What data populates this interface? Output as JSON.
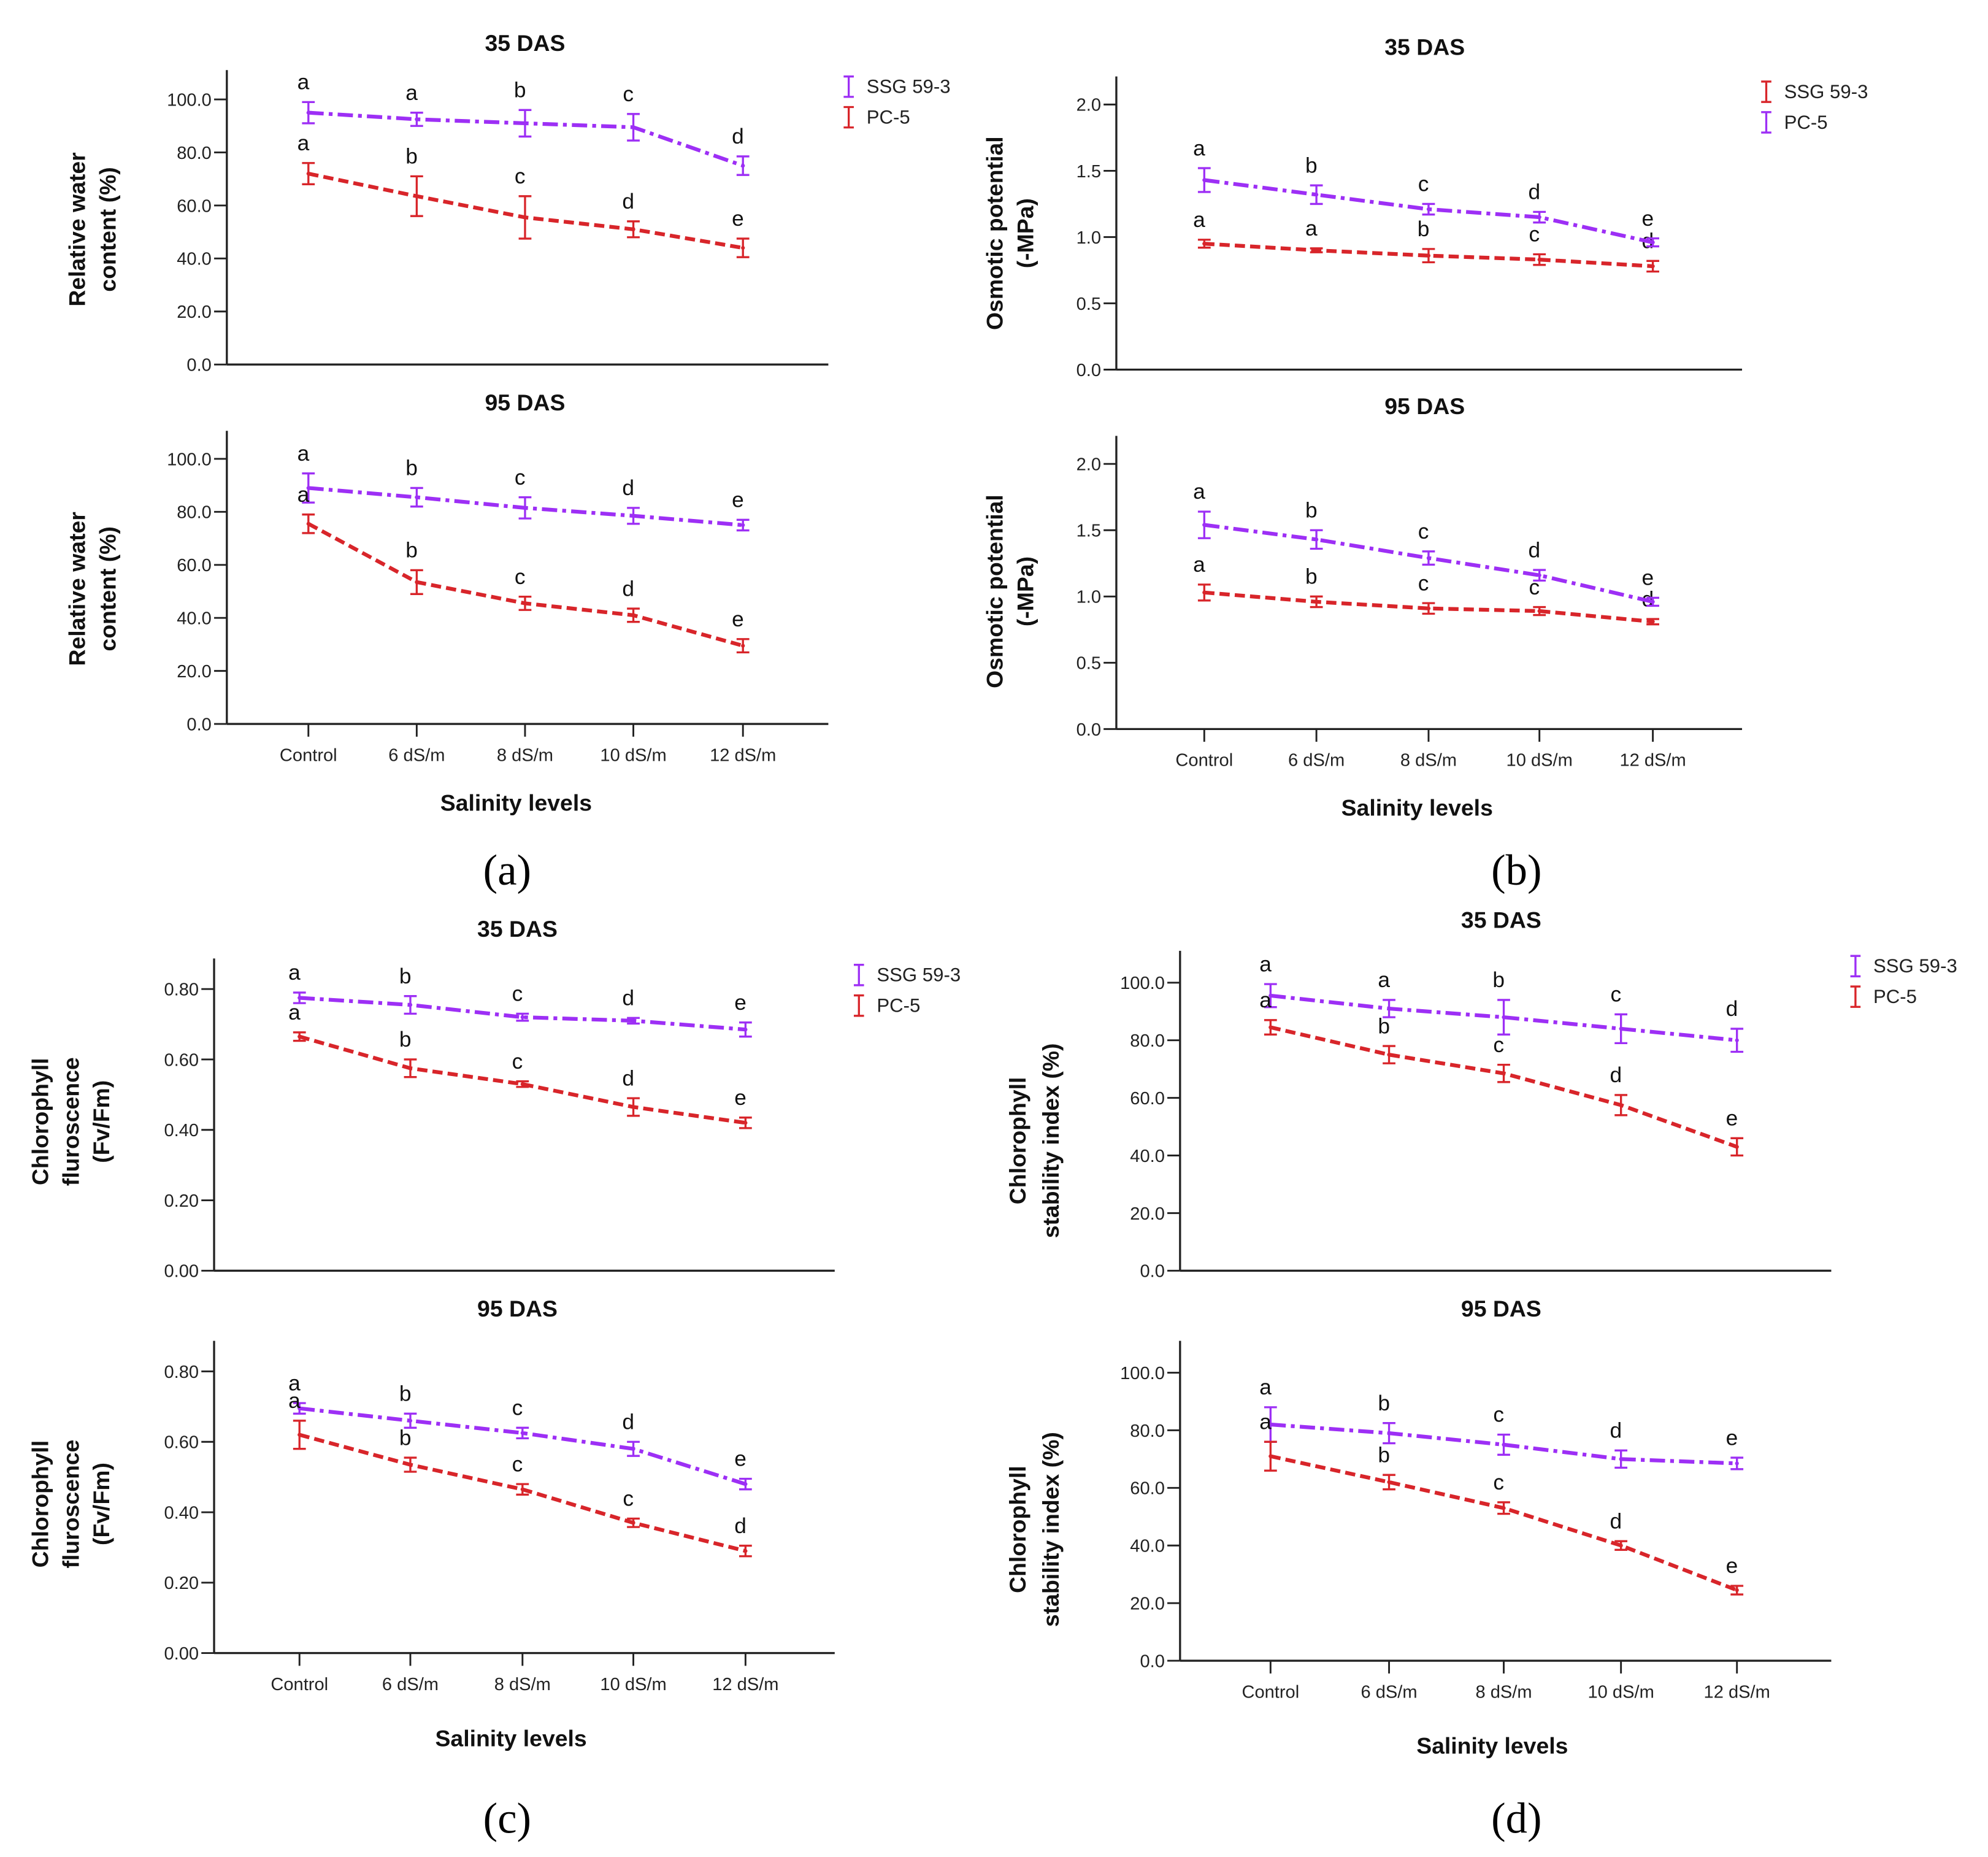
{
  "panels": [
    {
      "label": "(a)"
    },
    {
      "label": "(b)"
    },
    {
      "label": "(c)"
    },
    {
      "label": "(d)"
    }
  ],
  "colors": {
    "purple": "#9d2ff5",
    "red": "#d8252a"
  },
  "chart_data": [
    {
      "type": "line",
      "panel": "a",
      "title": "35 DAS",
      "ylabel": [
        "Relative water",
        "content (%)"
      ],
      "xlabel": "",
      "categories": [
        "Control",
        "6 dS/m",
        "8 dS/m",
        "10 dS/m",
        "12 dS/m"
      ],
      "show_categories": false,
      "ylim": [
        0,
        100
      ],
      "yticks": [
        "0.0",
        "20.0",
        "40.0",
        "60.0",
        "80.0",
        "100.0"
      ],
      "legend": "top-right",
      "series": [
        {
          "name": "SSG 59-3",
          "color": "purple",
          "style": "dashdot",
          "values": [
            95,
            92.5,
            91,
            89.5,
            75
          ],
          "errors": [
            4,
            2.5,
            5,
            5,
            3.5
          ],
          "letters": [
            "a",
            "a",
            "b",
            "c",
            "d"
          ]
        },
        {
          "name": "PC-5",
          "color": "red",
          "style": "dashed",
          "values": [
            72,
            63.5,
            55.5,
            51,
            44
          ],
          "errors": [
            4,
            7.5,
            8,
            3,
            3.5
          ],
          "letters": [
            "a",
            "b",
            "c",
            "d",
            "e"
          ]
        }
      ]
    },
    {
      "type": "line",
      "panel": "a",
      "title": "95 DAS",
      "ylabel": [
        "Relative water",
        "content (%)"
      ],
      "xlabel": "Salinity levels",
      "categories": [
        "Control",
        "6 dS/m",
        "8 dS/m",
        "10 dS/m",
        "12 dS/m"
      ],
      "show_categories": true,
      "ylim": [
        0,
        100
      ],
      "yticks": [
        "0.0",
        "20.0",
        "40.0",
        "60.0",
        "80.0",
        "100.0"
      ],
      "legend": "none",
      "series": [
        {
          "name": "SSG 59-3",
          "color": "purple",
          "style": "dashdot",
          "values": [
            89,
            85.5,
            81.5,
            78.5,
            75
          ],
          "errors": [
            5.5,
            3.5,
            4,
            3,
            2
          ],
          "letters": [
            "a",
            "b",
            "c",
            "d",
            "e"
          ]
        },
        {
          "name": "PC-5",
          "color": "red",
          "style": "dashed",
          "values": [
            75.5,
            53.5,
            45.5,
            41,
            29.5
          ],
          "errors": [
            3.5,
            4.5,
            2.5,
            2.5,
            2.5
          ],
          "letters": [
            "a",
            "b",
            "c",
            "d",
            "e"
          ]
        }
      ]
    },
    {
      "type": "line",
      "panel": "b",
      "title": "35 DAS",
      "ylabel": [
        "Osmotic potential",
        "(-MPa)"
      ],
      "xlabel": "",
      "categories": [
        "Control",
        "6 dS/m",
        "8 dS/m",
        "10 dS/m",
        "12 dS/m"
      ],
      "show_categories": false,
      "ylim": [
        0,
        2
      ],
      "yticks": [
        "0.0",
        "0.5",
        "1.0",
        "1.5",
        "2.0"
      ],
      "legend": "top-right",
      "series": [
        {
          "name": "SSG 59-3",
          "color": "red",
          "style": "dashed",
          "values": [
            0.95,
            0.9,
            0.86,
            0.83,
            0.78
          ],
          "errors": [
            0.03,
            0.015,
            0.05,
            0.04,
            0.04
          ],
          "letters": [
            "a",
            "a",
            "b",
            "c",
            "d"
          ]
        },
        {
          "name": "PC-5",
          "color": "purple",
          "style": "dashdot",
          "values": [
            1.43,
            1.32,
            1.21,
            1.15,
            0.96
          ],
          "errors": [
            0.09,
            0.07,
            0.04,
            0.04,
            0.03
          ],
          "letters": [
            "a",
            "b",
            "c",
            "d",
            "e"
          ]
        }
      ]
    },
    {
      "type": "line",
      "panel": "b",
      "title": "95 DAS",
      "ylabel": [
        "Osmotic potential",
        "(-MPa)"
      ],
      "xlabel": "Salinity levels",
      "categories": [
        "Control",
        "6 dS/m",
        "8 dS/m",
        "10 dS/m",
        "12 dS/m"
      ],
      "show_categories": true,
      "ylim": [
        0,
        2
      ],
      "yticks": [
        "0.0",
        "0.5",
        "1.0",
        "1.5",
        "2.0"
      ],
      "legend": "none",
      "series": [
        {
          "name": "SSG 59-3",
          "color": "red",
          "style": "dashed",
          "values": [
            1.03,
            0.96,
            0.91,
            0.89,
            0.81
          ],
          "errors": [
            0.06,
            0.04,
            0.04,
            0.03,
            0.02
          ],
          "letters": [
            "a",
            "b",
            "c",
            "c",
            "d"
          ]
        },
        {
          "name": "PC-5",
          "color": "purple",
          "style": "dashdot",
          "values": [
            1.54,
            1.43,
            1.29,
            1.16,
            0.96
          ],
          "errors": [
            0.1,
            0.07,
            0.05,
            0.04,
            0.03
          ],
          "letters": [
            "a",
            "b",
            "c",
            "d",
            "e"
          ]
        }
      ]
    },
    {
      "type": "line",
      "panel": "c",
      "title": "35 DAS",
      "ylabel": [
        "Chlorophyll",
        "fluroscence",
        "(Fv/Fm)"
      ],
      "xlabel": "",
      "categories": [
        "Control",
        "6 dS/m",
        "8 dS/m",
        "10 dS/m",
        "12 dS/m"
      ],
      "show_categories": false,
      "ylim": [
        0,
        0.8
      ],
      "yticks": [
        "0.00",
        "0.20",
        "0.40",
        "0.60",
        "0.80"
      ],
      "legend": "top-right",
      "series": [
        {
          "name": "SSG 59-3",
          "color": "purple",
          "style": "dashdot",
          "values": [
            0.775,
            0.755,
            0.72,
            0.71,
            0.685
          ],
          "errors": [
            0.015,
            0.025,
            0.01,
            0.008,
            0.02
          ],
          "letters": [
            "a",
            "b",
            "c",
            "d",
            "e"
          ]
        },
        {
          "name": "PC-5",
          "color": "red",
          "style": "dashed",
          "values": [
            0.665,
            0.575,
            0.53,
            0.465,
            0.42
          ],
          "errors": [
            0.012,
            0.025,
            0.008,
            0.025,
            0.015
          ],
          "letters": [
            "a",
            "b",
            "c",
            "d",
            "e"
          ]
        }
      ]
    },
    {
      "type": "line",
      "panel": "c",
      "title": "95 DAS",
      "ylabel": [
        "Chlorophyll",
        "fluroscence",
        "(Fv/Fm)"
      ],
      "xlabel": "Salinity levels",
      "categories": [
        "Control",
        "6 dS/m",
        "8 dS/m",
        "10 dS/m",
        "12 dS/m"
      ],
      "show_categories": true,
      "ylim": [
        0,
        0.8
      ],
      "yticks": [
        "0.00",
        "0.20",
        "0.40",
        "0.60",
        "0.80"
      ],
      "legend": "none",
      "series": [
        {
          "name": "SSG 59-3",
          "color": "purple",
          "style": "dashdot",
          "values": [
            0.695,
            0.66,
            0.625,
            0.58,
            0.48
          ],
          "errors": [
            0.015,
            0.02,
            0.015,
            0.02,
            0.015
          ],
          "letters": [
            "a",
            "b",
            "c",
            "d",
            "e"
          ]
        },
        {
          "name": "PC-5",
          "color": "red",
          "style": "dashed",
          "values": [
            0.62,
            0.535,
            0.465,
            0.37,
            0.29
          ],
          "errors": [
            0.04,
            0.02,
            0.015,
            0.012,
            0.015
          ],
          "letters": [
            "a",
            "b",
            "c",
            "c",
            "d"
          ]
        }
      ]
    },
    {
      "type": "line",
      "panel": "d",
      "title": "35 DAS",
      "ylabel": [
        "Chlorophyll",
        "stability index (%)"
      ],
      "xlabel": "",
      "categories": [
        "Control",
        "6 dS/m",
        "8 dS/m",
        "10 dS/m",
        "12 dS/m"
      ],
      "show_categories": false,
      "ylim": [
        0,
        100
      ],
      "yticks": [
        "0.0",
        "20.0",
        "40.0",
        "60.0",
        "80.0",
        "100.0"
      ],
      "legend": "top-right",
      "series": [
        {
          "name": "SSG 59-3",
          "color": "purple",
          "style": "dashdot",
          "values": [
            95.5,
            91,
            88,
            84,
            80
          ],
          "errors": [
            4,
            3,
            6,
            5,
            4
          ],
          "letters": [
            "a",
            "a",
            "b",
            "c",
            "d"
          ]
        },
        {
          "name": "PC-5",
          "color": "red",
          "style": "dashed",
          "values": [
            84.5,
            75,
            68.5,
            57.5,
            43
          ],
          "errors": [
            2.5,
            3,
            3,
            3.5,
            3
          ],
          "letters": [
            "a",
            "b",
            "c",
            "d",
            "e"
          ]
        }
      ]
    },
    {
      "type": "line",
      "panel": "d",
      "title": "95 DAS",
      "ylabel": [
        "Chlorophyll",
        "stability index (%)"
      ],
      "xlabel": "Salinity levels",
      "categories": [
        "Control",
        "6 dS/m",
        "8 dS/m",
        "10 dS/m",
        "12 dS/m"
      ],
      "show_categories": true,
      "ylim": [
        0,
        100
      ],
      "yticks": [
        "0.0",
        "20.0",
        "40.0",
        "60.0",
        "80.0",
        "100.0"
      ],
      "legend": "none",
      "series": [
        {
          "name": "SSG 59-3",
          "color": "purple",
          "style": "dashdot",
          "values": [
            82,
            79,
            75,
            70,
            68.5
          ],
          "errors": [
            6,
            3.5,
            3.5,
            3,
            2
          ],
          "letters": [
            "a",
            "b",
            "c",
            "d",
            "e"
          ]
        },
        {
          "name": "PC-5",
          "color": "red",
          "style": "dashed",
          "values": [
            71,
            62,
            53,
            40,
            24.5
          ],
          "errors": [
            5,
            2.5,
            2,
            1.5,
            1.5
          ],
          "letters": [
            "a",
            "b",
            "c",
            "d",
            "e"
          ]
        }
      ]
    }
  ]
}
